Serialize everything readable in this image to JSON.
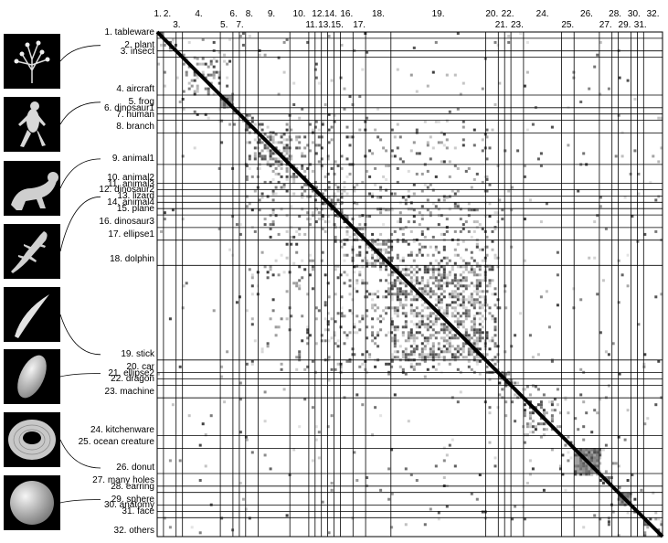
{
  "figure": {
    "categories": [
      {
        "index": "1.",
        "name": "tableware"
      },
      {
        "index": "2.",
        "name": "plant"
      },
      {
        "index": "3.",
        "name": "insect"
      },
      {
        "index": "4.",
        "name": "aircraft"
      },
      {
        "index": "5.",
        "name": "frog"
      },
      {
        "index": "6.",
        "name": "dinosaur1"
      },
      {
        "index": "7.",
        "name": "human"
      },
      {
        "index": "8.",
        "name": "branch"
      },
      {
        "index": "9.",
        "name": "animal1"
      },
      {
        "index": "10.",
        "name": "animal2"
      },
      {
        "index": "11.",
        "name": "animal3"
      },
      {
        "index": "12.",
        "name": "dinosaur2"
      },
      {
        "index": "13.",
        "name": "lizard"
      },
      {
        "index": "14.",
        "name": "animal4"
      },
      {
        "index": "15.",
        "name": "plane"
      },
      {
        "index": "16.",
        "name": "dinosaur3"
      },
      {
        "index": "17.",
        "name": "ellipse1"
      },
      {
        "index": "18.",
        "name": "dolphin"
      },
      {
        "index": "19.",
        "name": "stick"
      },
      {
        "index": "20.",
        "name": "car"
      },
      {
        "index": "21.",
        "name": "ellipse2"
      },
      {
        "index": "22.",
        "name": "dragon"
      },
      {
        "index": "23.",
        "name": "machine"
      },
      {
        "index": "24.",
        "name": "kitchenware"
      },
      {
        "index": "25.",
        "name": "ocean creature"
      },
      {
        "index": "26.",
        "name": "donut"
      },
      {
        "index": "27.",
        "name": "many holes"
      },
      {
        "index": "28.",
        "name": "earring"
      },
      {
        "index": "29.",
        "name": "sphere"
      },
      {
        "index": "30.",
        "name": "anatomy"
      },
      {
        "index": "31.",
        "name": "face"
      },
      {
        "index": "32.",
        "name": "others"
      }
    ],
    "category_sizes": [
      1,
      2,
      1,
      6,
      2,
      1,
      1,
      2,
      5,
      3,
      1,
      1,
      1,
      1,
      1,
      2,
      2,
      4,
      15,
      2,
      1,
      1,
      2,
      6,
      2,
      4,
      2,
      1,
      2,
      1,
      1,
      3
    ],
    "thumbnails": [
      {
        "name": "plant-thumbnail-icon",
        "points_to": "2. plant"
      },
      {
        "name": "frog-thumbnail-icon",
        "points_to": "5. frog"
      },
      {
        "name": "animal-thumbnail-icon",
        "points_to": "9. animal1"
      },
      {
        "name": "lizard-thumbnail-icon",
        "points_to": "13. lizard"
      },
      {
        "name": "stick-thumbnail-icon",
        "points_to": "19. stick"
      },
      {
        "name": "ellipse-thumbnail-icon",
        "points_to": "21. ellipse2"
      },
      {
        "name": "donut-thumbnail-icon",
        "points_to": "26. donut"
      },
      {
        "name": "sphere-thumbnail-icon",
        "points_to": "29. sphere"
      }
    ],
    "matrix_description": "similarity matrix with dark diagonal, gray blocks within categories",
    "colors": {
      "background": "#ffffff",
      "grid": "#000000",
      "thumbnail_bg": "#000000",
      "shape": "#d8d8d8"
    }
  }
}
